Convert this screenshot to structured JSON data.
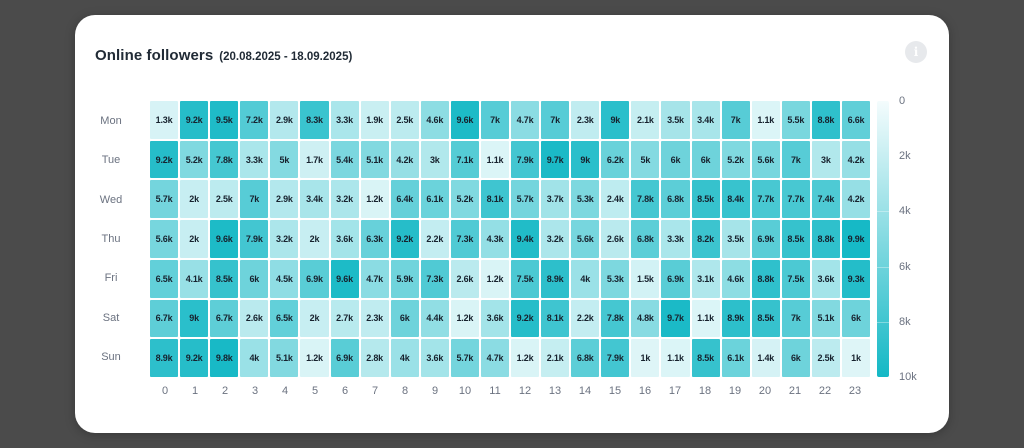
{
  "card": {
    "title": "Online followers",
    "subtitle": "(20.08.2025 - 18.09.2025)",
    "info_icon": "i"
  },
  "colors": {
    "frame_bg": "#4b4b4b",
    "card_bg": "#ffffff",
    "scale_min": "#f4fcfd",
    "scale_max": "#14b8c5",
    "cell_text": "#17222e",
    "axis_text": "#6b7280"
  },
  "chart_data": {
    "type": "heatmap",
    "title": "Online followers",
    "date_range": "20.08.2025 - 18.09.2025",
    "rows": [
      "Mon",
      "Tue",
      "Wed",
      "Thu",
      "Fri",
      "Sat",
      "Sun"
    ],
    "columns": [
      "0",
      "1",
      "2",
      "3",
      "4",
      "5",
      "6",
      "7",
      "8",
      "9",
      "10",
      "11",
      "12",
      "13",
      "14",
      "15",
      "16",
      "17",
      "18",
      "19",
      "20",
      "21",
      "22",
      "23"
    ],
    "unit_suffix": "k",
    "value_unit": "thousands of followers",
    "scale": {
      "min": 0,
      "max": 10,
      "ticks": [
        "0",
        "2k",
        "4k",
        "6k",
        "8k",
        "10k"
      ],
      "legend_position": "right"
    },
    "series": [
      {
        "name": "Mon",
        "values": [
          1.3,
          9.2,
          9.5,
          7.2,
          2.9,
          8.3,
          3.3,
          1.9,
          2.5,
          4.6,
          9.6,
          7,
          4.7,
          7,
          2.3,
          9,
          2.1,
          3.5,
          3.4,
          7,
          1.1,
          5.5,
          8.8,
          6.6
        ]
      },
      {
        "name": "Tue",
        "values": [
          9.2,
          5.2,
          7.8,
          3.3,
          5,
          1.7,
          5.4,
          5.1,
          4.2,
          3,
          7.1,
          1.1,
          7.9,
          9.7,
          9,
          6.2,
          5,
          6,
          6,
          5.2,
          5.6,
          7,
          3,
          4.2
        ]
      },
      {
        "name": "Wed",
        "values": [
          5.7,
          2,
          2.5,
          7,
          2.9,
          3.4,
          3.2,
          1.2,
          6.4,
          6.1,
          5.2,
          8.1,
          5.7,
          3.7,
          5.3,
          2.4,
          7.8,
          6.8,
          8.5,
          8.4,
          7.7,
          7.7,
          7.4,
          4.2
        ]
      },
      {
        "name": "Thu",
        "values": [
          5.6,
          2,
          9.6,
          7.9,
          3.2,
          2,
          3.6,
          6.3,
          9.2,
          2.2,
          7.3,
          4.3,
          9.4,
          3.2,
          5.6,
          2.6,
          6.8,
          3.3,
          8.2,
          3.5,
          6.9,
          8.5,
          8.8,
          9.9
        ]
      },
      {
        "name": "Fri",
        "values": [
          6.5,
          4.1,
          8.5,
          6,
          4.5,
          6.9,
          9.6,
          4.7,
          5.9,
          7.3,
          2.6,
          1.2,
          7.5,
          8.9,
          4,
          5.3,
          1.5,
          6.9,
          3.1,
          4.6,
          8.8,
          7.5,
          3.6,
          9.3
        ]
      },
      {
        "name": "Sat",
        "values": [
          6.7,
          9,
          6.7,
          2.6,
          6.5,
          2,
          2.7,
          2.3,
          6,
          4.4,
          1.2,
          3.6,
          9.2,
          8.1,
          2.2,
          7.8,
          4.8,
          9.7,
          1.1,
          8.9,
          8.5,
          7,
          5.1,
          6
        ]
      },
      {
        "name": "Sun",
        "values": [
          8.9,
          9.2,
          9.8,
          4,
          5.1,
          1.2,
          6.9,
          2.8,
          4,
          3.6,
          5.7,
          4.7,
          1.2,
          2.1,
          6.8,
          7.9,
          1,
          1.1,
          8.5,
          6.1,
          1.4,
          6,
          2.5,
          1
        ]
      }
    ]
  }
}
